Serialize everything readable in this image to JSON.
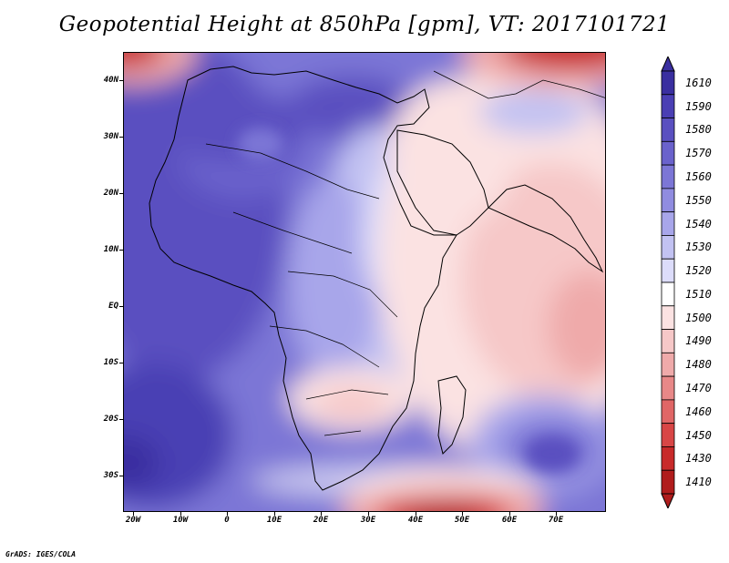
{
  "title": "Geopotential Height at 850hPa [gpm], VT: 2017101721",
  "credit": "GrADS: IGES/COLA",
  "axes": {
    "lat_labels": [
      "40N",
      "30N",
      "20N",
      "10N",
      "EQ",
      "10S",
      "20S",
      "30S"
    ],
    "lon_labels": [
      "20W",
      "10W",
      "0",
      "10E",
      "20E",
      "30E",
      "40E",
      "50E",
      "60E",
      "70E"
    ]
  },
  "colorbar": {
    "levels": [
      "1610",
      "1590",
      "1580",
      "1570",
      "1560",
      "1550",
      "1540",
      "1530",
      "1520",
      "1510",
      "1500",
      "1490",
      "1480",
      "1470",
      "1460",
      "1450",
      "1430",
      "1410"
    ],
    "colors": [
      "#3a2fa0",
      "#4a3fb4",
      "#5a50c0",
      "#6a62cc",
      "#7c76d6",
      "#908ce0",
      "#a8a6ea",
      "#c2c2f2",
      "#dcdcfa",
      "#ffffff",
      "#fbe2e2",
      "#f6c8c8",
      "#efaaaa",
      "#e88888",
      "#e06666",
      "#d84646",
      "#c82a2a",
      "#b01c1c"
    ]
  }
}
